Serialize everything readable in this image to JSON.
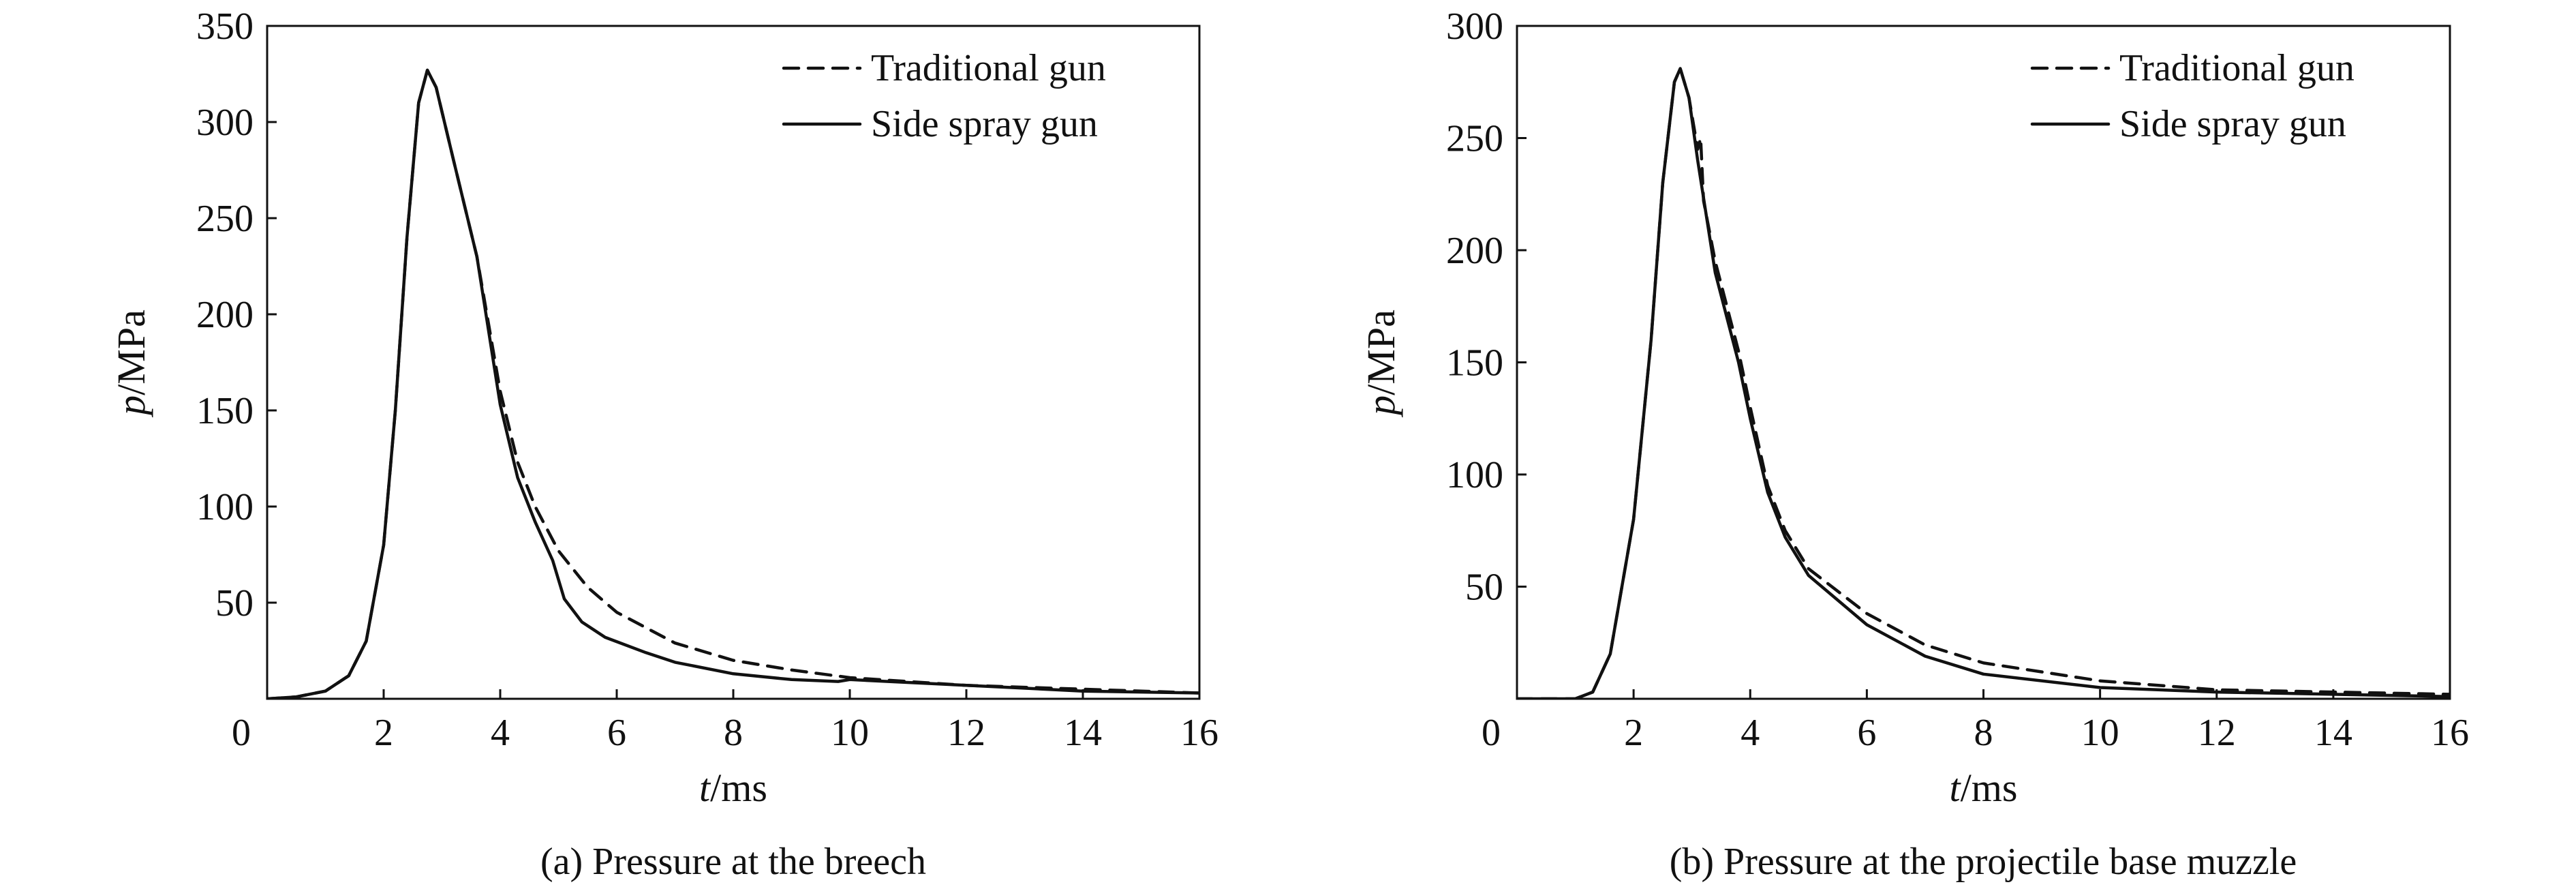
{
  "chart_data": [
    {
      "type": "line",
      "title": "(a) Pressure at the breech",
      "xlabel_var": "t",
      "xlabel_unit": "/ms",
      "ylabel_var": "p",
      "ylabel_unit": "/MPa",
      "xlim": [
        0,
        16
      ],
      "ylim": [
        0,
        350
      ],
      "x_ticks": [
        0,
        2,
        4,
        6,
        8,
        10,
        12,
        14,
        16
      ],
      "y_ticks": [
        50,
        100,
        150,
        200,
        250,
        300,
        350
      ],
      "x_zero_label": "0",
      "grid": false,
      "legend_position": "top-right",
      "series": [
        {
          "name": "Traditional gun",
          "style": "dashed",
          "color": "#111111",
          "points": [
            [
              0,
              0
            ],
            [
              0.5,
              1
            ],
            [
              1.0,
              4
            ],
            [
              1.4,
              12
            ],
            [
              1.7,
              30
            ],
            [
              2.0,
              80
            ],
            [
              2.2,
              150
            ],
            [
              2.4,
              240
            ],
            [
              2.6,
              310
            ],
            [
              2.75,
              327
            ],
            [
              2.9,
              318
            ],
            [
              3.2,
              280
            ],
            [
              3.6,
              230
            ],
            [
              4.0,
              160
            ],
            [
              4.3,
              123
            ],
            [
              4.6,
              100
            ],
            [
              5.0,
              77
            ],
            [
              5.5,
              58
            ],
            [
              6.0,
              45
            ],
            [
              7.0,
              29
            ],
            [
              8.0,
              20
            ],
            [
              9.0,
              15
            ],
            [
              10.0,
              11
            ],
            [
              12.0,
              7
            ],
            [
              14.0,
              5
            ],
            [
              16.0,
              3
            ]
          ]
        },
        {
          "name": "Side spray gun",
          "style": "solid",
          "color": "#111111",
          "points": [
            [
              0,
              0
            ],
            [
              0.5,
              1
            ],
            [
              1.0,
              4
            ],
            [
              1.4,
              12
            ],
            [
              1.7,
              30
            ],
            [
              2.0,
              80
            ],
            [
              2.2,
              150
            ],
            [
              2.4,
              240
            ],
            [
              2.6,
              310
            ],
            [
              2.75,
              327
            ],
            [
              2.9,
              318
            ],
            [
              3.2,
              280
            ],
            [
              3.6,
              230
            ],
            [
              4.0,
              153
            ],
            [
              4.3,
              115
            ],
            [
              4.6,
              92
            ],
            [
              4.9,
              72
            ],
            [
              5.1,
              52
            ],
            [
              5.4,
              40
            ],
            [
              5.8,
              32
            ],
            [
              6.5,
              24
            ],
            [
              7.0,
              19
            ],
            [
              8.0,
              13
            ],
            [
              9.0,
              10
            ],
            [
              9.8,
              9
            ],
            [
              10.0,
              10
            ],
            [
              12.0,
              7
            ],
            [
              14.0,
              4
            ],
            [
              16.0,
              3
            ]
          ]
        }
      ]
    },
    {
      "type": "line",
      "title": "(b) Pressure at the projectile base muzzle",
      "xlabel_var": "t",
      "xlabel_unit": "/ms",
      "ylabel_var": "p",
      "ylabel_unit": "/MPa",
      "xlim": [
        0,
        16
      ],
      "ylim": [
        0,
        300
      ],
      "x_ticks": [
        0,
        2,
        4,
        6,
        8,
        10,
        12,
        14,
        16
      ],
      "y_ticks": [
        50,
        100,
        150,
        200,
        250,
        300
      ],
      "x_zero_label": "0",
      "grid": false,
      "legend_position": "top-right",
      "series": [
        {
          "name": "Traditional gun",
          "style": "dashed",
          "color": "#111111",
          "points": [
            [
              0,
              0
            ],
            [
              1.0,
              0
            ],
            [
              1.3,
              3
            ],
            [
              1.6,
              20
            ],
            [
              2.0,
              80
            ],
            [
              2.3,
              160
            ],
            [
              2.5,
              230
            ],
            [
              2.7,
              275
            ],
            [
              2.8,
              281
            ],
            [
              2.95,
              268
            ],
            [
              3.1,
              245
            ],
            [
              3.15,
              250
            ],
            [
              3.2,
              222
            ],
            [
              3.4,
              195
            ],
            [
              3.8,
              155
            ],
            [
              4.0,
              130
            ],
            [
              4.3,
              95
            ],
            [
              4.6,
              75
            ],
            [
              5.0,
              58
            ],
            [
              6.0,
              38
            ],
            [
              7.0,
              24
            ],
            [
              8.0,
              16
            ],
            [
              10.0,
              8
            ],
            [
              12.0,
              4
            ],
            [
              14.0,
              3
            ],
            [
              16.0,
              2
            ]
          ]
        },
        {
          "name": "Side spray gun",
          "style": "solid",
          "color": "#111111",
          "points": [
            [
              0,
              0
            ],
            [
              1.0,
              0
            ],
            [
              1.3,
              3
            ],
            [
              1.6,
              20
            ],
            [
              2.0,
              80
            ],
            [
              2.3,
              160
            ],
            [
              2.5,
              230
            ],
            [
              2.7,
              275
            ],
            [
              2.8,
              281
            ],
            [
              2.95,
              268
            ],
            [
              3.1,
              240
            ],
            [
              3.4,
              190
            ],
            [
              3.8,
              150
            ],
            [
              4.0,
              125
            ],
            [
              4.3,
              92
            ],
            [
              4.6,
              72
            ],
            [
              5.0,
              55
            ],
            [
              6.0,
              33
            ],
            [
              7.0,
              19
            ],
            [
              8.0,
              11
            ],
            [
              10.0,
              5
            ],
            [
              12.0,
              3
            ],
            [
              14.0,
              2
            ],
            [
              16.0,
              1
            ]
          ]
        }
      ]
    }
  ]
}
